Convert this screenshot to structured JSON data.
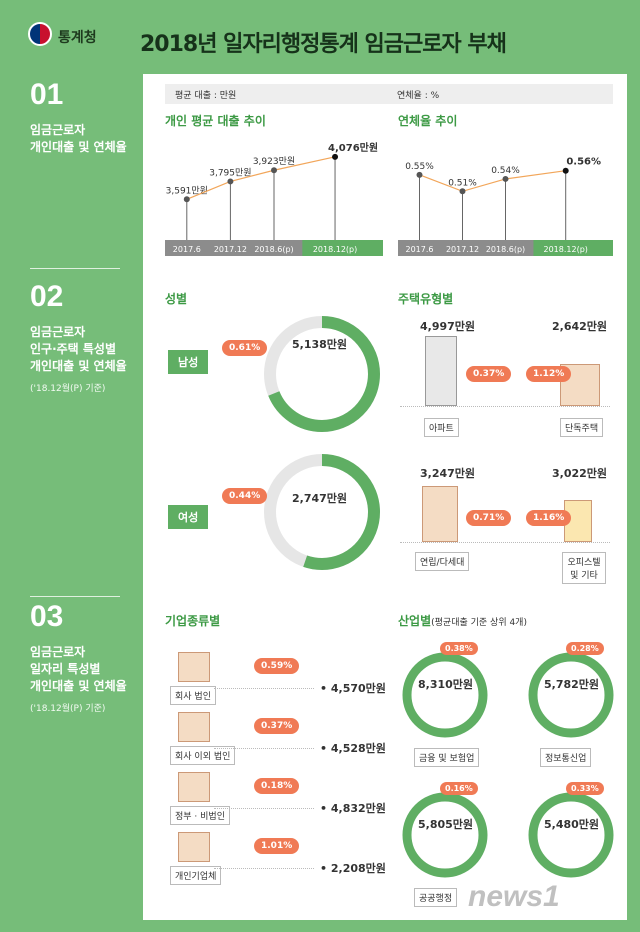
{
  "header": {
    "agency": "통계청",
    "title": "2018년 일자리행정통계 임금근로자 부채"
  },
  "sections": [
    {
      "num": "01",
      "label1": "임금근로자",
      "label2": "개인대출 및 연체율",
      "label3": "",
      "note": ""
    },
    {
      "num": "02",
      "label1": "임금근로자",
      "label2": "인구·주택 특성별",
      "label3": "개인대출 및 연체율",
      "note": "('18.12월(P) 기준)"
    },
    {
      "num": "03",
      "label1": "임금근로자",
      "label2": "일자리 특성별",
      "label3": "개인대출 및 연체율",
      "note": "('18.12월(P) 기준)"
    }
  ],
  "legend": {
    "loan": "평균 대출 : 만원",
    "delinq": "연체율 : %"
  },
  "chart_data": [
    {
      "type": "line",
      "title": "개인 평균 대출 추이",
      "categories": [
        "2017.6",
        "2017.12",
        "2018.6(p)",
        "2018.12(p)"
      ],
      "values": [
        3591,
        3795,
        3923,
        4076
      ],
      "labels": [
        "3,591만원",
        "3,795만원",
        "3,923만원",
        "4,076만원"
      ]
    },
    {
      "type": "line",
      "title": "연체율 추이",
      "categories": [
        "2017.6",
        "2017.12",
        "2018.6(p)",
        "2018.12(p)"
      ],
      "values": [
        0.55,
        0.51,
        0.54,
        0.56
      ],
      "labels": [
        "0.55%",
        "0.51%",
        "0.54%",
        "0.56%"
      ]
    },
    {
      "type": "pie",
      "title": "성별",
      "items": [
        {
          "name": "남성",
          "loan": "5,138만원",
          "rate": "0.61%",
          "rate_value": 0.61
        },
        {
          "name": "여성",
          "loan": "2,747만원",
          "rate": "0.44%",
          "rate_value": 0.44
        }
      ]
    },
    {
      "type": "bar",
      "title": "주택유형별",
      "items": [
        {
          "name": "아파트",
          "loan": "4,997만원",
          "rate": "0.37%"
        },
        {
          "name": "단독주택",
          "loan": "2,642만원",
          "rate": "1.12%"
        },
        {
          "name": "연립/다세대",
          "loan": "3,247만원",
          "rate": "0.71%"
        },
        {
          "name": "오피스텔 및 기타",
          "loan": "3,022만원",
          "rate": "1.16%"
        }
      ]
    },
    {
      "type": "bar",
      "title": "기업종류별",
      "items": [
        {
          "name": "회사 법인",
          "loan": "4,570만원",
          "rate": "0.59%"
        },
        {
          "name": "회사 이외 법인",
          "loan": "4,528만원",
          "rate": "0.37%"
        },
        {
          "name": "정부 · 비법인",
          "loan": "4,832만원",
          "rate": "0.18%"
        },
        {
          "name": "개인기업체",
          "loan": "2,208만원",
          "rate": "1.01%"
        }
      ]
    },
    {
      "type": "pie",
      "title": "산업별",
      "subtitle": "(평균대출 기준 상위 4개)",
      "items": [
        {
          "name": "금융 및 보험업",
          "loan": "8,310만원",
          "rate": "0.38%",
          "rate_value": 0.38
        },
        {
          "name": "정보통신업",
          "loan": "5,782만원",
          "rate": "0.28%",
          "rate_value": 0.28
        },
        {
          "name": "공공행정",
          "loan": "5,805만원",
          "rate": "0.16%",
          "rate_value": 0.16
        },
        {
          "name": "",
          "loan": "5,480만원",
          "rate": "0.33%",
          "rate_value": 0.33
        }
      ]
    }
  ],
  "watermark": "news1",
  "colors": {
    "green": "#5fae63",
    "orange": "#f07a55",
    "bg": "#76bd79"
  }
}
